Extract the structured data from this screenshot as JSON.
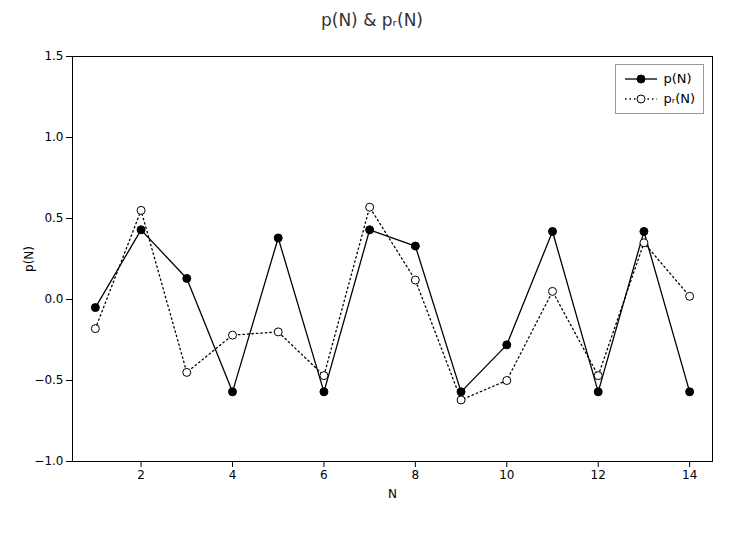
{
  "chart_data": {
    "type": "line",
    "title": "p(N) & pᵣ(N)",
    "x_label": "N",
    "y_label": "p(N)",
    "x": [
      1,
      2,
      3,
      4,
      5,
      6,
      7,
      8,
      9,
      10,
      11,
      12,
      13,
      14
    ],
    "series": [
      {
        "name": "p(N)",
        "color": "black",
        "line_style": "solid",
        "marker": "filled_circle",
        "values": [
          -0.05,
          0.43,
          0.13,
          -0.57,
          0.38,
          -0.57,
          0.43,
          0.33,
          -0.57,
          -0.28,
          0.42,
          -0.57,
          0.42,
          -0.57
        ]
      },
      {
        "name": "pᵣ(N)",
        "color": "black",
        "line_style": "dotted",
        "marker": "open_circle",
        "values": [
          -0.18,
          0.55,
          -0.45,
          -0.22,
          -0.2,
          -0.47,
          0.57,
          0.12,
          -0.62,
          -0.5,
          0.05,
          -0.47,
          0.35,
          0.02
        ]
      }
    ],
    "xlim": [
      0.5,
      14.5
    ],
    "ylim": [
      -1.0,
      1.5
    ],
    "xticks": [
      2,
      4,
      6,
      8,
      10,
      12,
      14
    ],
    "yticks": [
      {
        "value": -1.0,
        "label": "−1.0"
      },
      {
        "value": -0.5,
        "label": "−0.5"
      },
      {
        "value": 0.0,
        "label": "0.0"
      },
      0.5,
      {
        "value": 1.0,
        "label": "1.0"
      },
      {
        "value": 1.5,
        "label": "1.5"
      }
    ],
    "grid": false,
    "legend": "upper right"
  }
}
